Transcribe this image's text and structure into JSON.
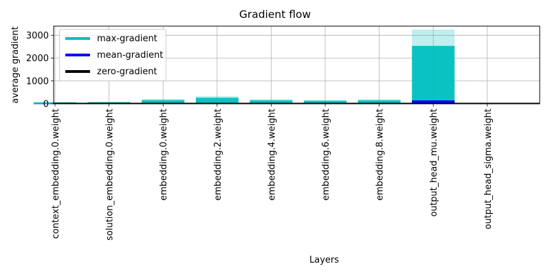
{
  "chart_data": {
    "type": "bar",
    "title": "Gradient flow",
    "xlabel": "Layers",
    "ylabel": "average gradient",
    "ylim": [
      0,
      3400
    ],
    "yticks": [
      0,
      1000,
      2000,
      3000
    ],
    "grid": true,
    "legend_position": "top-left",
    "categories": [
      "context_embedding.0.weight",
      "solution_embedding.0.weight",
      "embedding.0.weight",
      "embedding.2.weight",
      "embedding.4.weight",
      "embedding.6.weight",
      "embedding.8.weight",
      "output_head_mu.weight",
      "output_head_sigma.weight"
    ],
    "series": [
      {
        "name": "max-gradient",
        "color": "#00bfbf",
        "values": [
          80,
          90,
          210,
          340,
          200,
          170,
          200,
          3250,
          5
        ]
      },
      {
        "name": "mean-gradient",
        "color": "#0000ff",
        "values": [
          4,
          4,
          8,
          15,
          8,
          7,
          8,
          150,
          1
        ]
      },
      {
        "name": "zero-gradient",
        "color": "#000000",
        "values": [
          0,
          0,
          0,
          0,
          0,
          0,
          0,
          0,
          0
        ]
      }
    ]
  }
}
